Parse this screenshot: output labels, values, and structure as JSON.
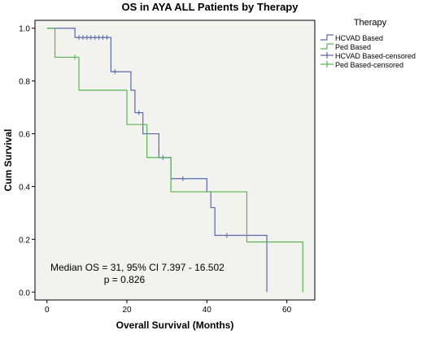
{
  "chart_data": {
    "type": "line",
    "subtype": "kaplan-meier",
    "title": "OS in AYA ALL Patients by Therapy",
    "xlabel": "Overall Survival (Months)",
    "ylabel": "Cum Survival",
    "xlim": [
      -3,
      67
    ],
    "ylim": [
      -0.03,
      1.03
    ],
    "xticks": [
      0,
      20,
      40,
      60
    ],
    "yticks": [
      0.0,
      0.2,
      0.4,
      0.6,
      0.8,
      1.0
    ],
    "xtick_labels": [
      "0",
      "20",
      "40",
      "60"
    ],
    "ytick_labels": [
      "0.0",
      "0.2",
      "0.4",
      "0.6",
      "0.8",
      "1.0"
    ],
    "grid": false,
    "plot_background": "#f2f2ee",
    "legend": {
      "title": "Therapy",
      "position": "right",
      "entries": [
        "HCVAD Based",
        "Ped Based",
        "HCVAD Based-censored",
        "Ped Based-censored"
      ]
    },
    "annotations": [
      "Median OS = 31, 95% CI 7.397 - 16.502",
      "p = 0.826"
    ],
    "series": [
      {
        "name": "HCVAD Based",
        "color": "#5a6aa8",
        "steps": [
          [
            0,
            1.0
          ],
          [
            7,
            0.965
          ],
          [
            16,
            0.835
          ],
          [
            21,
            0.765
          ],
          [
            22,
            0.68
          ],
          [
            24,
            0.6
          ],
          [
            28,
            0.51
          ],
          [
            31,
            0.43
          ],
          [
            40,
            0.38
          ],
          [
            41,
            0.32
          ],
          [
            42,
            0.215
          ],
          [
            55,
            0.0
          ]
        ],
        "censored": [
          [
            8,
            0.965
          ],
          [
            9,
            0.965
          ],
          [
            10,
            0.965
          ],
          [
            11,
            0.965
          ],
          [
            12,
            0.965
          ],
          [
            13,
            0.965
          ],
          [
            14,
            0.965
          ],
          [
            15,
            0.965
          ],
          [
            17,
            0.835
          ],
          [
            23,
            0.68
          ],
          [
            29,
            0.51
          ],
          [
            34,
            0.43
          ],
          [
            45,
            0.215
          ]
        ]
      },
      {
        "name": "Ped Based",
        "color": "#5ab552",
        "steps": [
          [
            0,
            1.0
          ],
          [
            2,
            0.89
          ],
          [
            8,
            0.765
          ],
          [
            20,
            0.635
          ],
          [
            25,
            0.51
          ],
          [
            31,
            0.38
          ],
          [
            39,
            0.38
          ],
          [
            50,
            0.19
          ],
          [
            64,
            0.0
          ]
        ],
        "censored": [
          [
            7,
            0.89
          ]
        ]
      }
    ]
  }
}
